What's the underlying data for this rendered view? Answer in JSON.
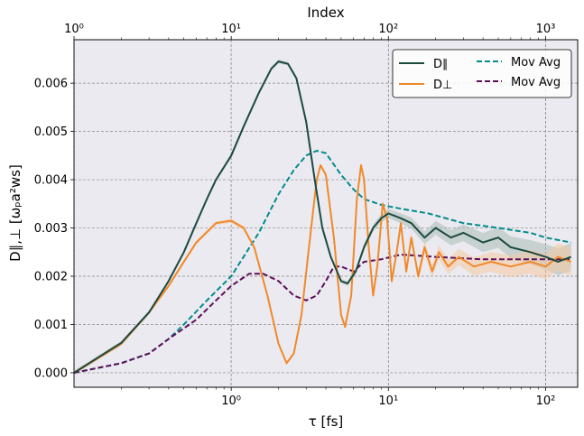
{
  "chart_data": {
    "type": "line",
    "xlabel": "τ [fs]",
    "ylabel": "D∥,⊥ [ωₚa²ws]",
    "top_xlabel": "Index",
    "xscale": "log",
    "xlim": [
      0.1,
      160
    ],
    "ylim": [
      -0.0003,
      0.0069
    ],
    "top_xlim": [
      1,
      1600
    ],
    "grid": true,
    "legend_position": "top-right",
    "x_ticks": [
      {
        "v": 1,
        "label": "10⁰"
      },
      {
        "v": 10,
        "label": "10¹"
      },
      {
        "v": 100,
        "label": "10²"
      }
    ],
    "top_ticks": [
      {
        "v": 1,
        "label": "10⁰"
      },
      {
        "v": 10,
        "label": "10¹"
      },
      {
        "v": 100,
        "label": "10²"
      },
      {
        "v": 1000,
        "label": "10³"
      }
    ],
    "y_ticks": [
      0.0,
      0.001,
      0.002,
      0.003,
      0.004,
      0.005,
      0.006
    ],
    "y_tick_labels": [
      "0.000",
      "0.001",
      "0.002",
      "0.003",
      "0.004",
      "0.005",
      "0.006"
    ],
    "series": [
      {
        "name": "D∥",
        "color": "#1b4a3e",
        "style": "solid",
        "points": [
          [
            0.1,
            0.0
          ],
          [
            0.2,
            0.00062
          ],
          [
            0.3,
            0.00125
          ],
          [
            0.4,
            0.0019
          ],
          [
            0.5,
            0.0025
          ],
          [
            0.6,
            0.0031
          ],
          [
            0.7,
            0.0036
          ],
          [
            0.8,
            0.004
          ],
          [
            1.0,
            0.0045
          ],
          [
            1.2,
            0.0051
          ],
          [
            1.5,
            0.0058
          ],
          [
            1.8,
            0.0063
          ],
          [
            2.0,
            0.00645
          ],
          [
            2.3,
            0.0064
          ],
          [
            2.6,
            0.0061
          ],
          [
            3.0,
            0.0052
          ],
          [
            3.4,
            0.004
          ],
          [
            3.8,
            0.003
          ],
          [
            4.3,
            0.0024
          ],
          [
            5.0,
            0.0019
          ],
          [
            5.5,
            0.00185
          ],
          [
            6.2,
            0.0021
          ],
          [
            7.0,
            0.0026
          ],
          [
            8.0,
            0.003
          ],
          [
            9.0,
            0.0032
          ],
          [
            10.0,
            0.0033
          ],
          [
            11.0,
            0.00325
          ],
          [
            12.0,
            0.0032
          ],
          [
            14.0,
            0.0031
          ],
          [
            17.0,
            0.0028
          ],
          [
            20.0,
            0.003
          ],
          [
            25.0,
            0.0028
          ],
          [
            30.0,
            0.0029
          ],
          [
            40.0,
            0.0027
          ],
          [
            50.0,
            0.0028
          ],
          [
            60.0,
            0.0026
          ],
          [
            80.0,
            0.0025
          ],
          [
            100.0,
            0.0024
          ],
          [
            120.0,
            0.0023
          ],
          [
            145.0,
            0.0024
          ]
        ]
      },
      {
        "name": "D⊥",
        "color": "#f0892a",
        "style": "solid",
        "points": [
          [
            0.1,
            0.0
          ],
          [
            0.2,
            0.0006
          ],
          [
            0.3,
            0.00125
          ],
          [
            0.4,
            0.0018
          ],
          [
            0.5,
            0.0023
          ],
          [
            0.6,
            0.0027
          ],
          [
            0.8,
            0.0031
          ],
          [
            1.0,
            0.00315
          ],
          [
            1.2,
            0.003
          ],
          [
            1.4,
            0.0026
          ],
          [
            1.7,
            0.0016
          ],
          [
            2.0,
            0.0006
          ],
          [
            2.25,
            0.0002
          ],
          [
            2.5,
            0.0004
          ],
          [
            2.8,
            0.0012
          ],
          [
            3.1,
            0.0025
          ],
          [
            3.5,
            0.004
          ],
          [
            3.7,
            0.0043
          ],
          [
            4.0,
            0.0041
          ],
          [
            4.5,
            0.0028
          ],
          [
            5.0,
            0.0012
          ],
          [
            5.3,
            0.00095
          ],
          [
            5.8,
            0.0016
          ],
          [
            6.3,
            0.0036
          ],
          [
            6.7,
            0.0043
          ],
          [
            7.0,
            0.004
          ],
          [
            7.5,
            0.0026
          ],
          [
            8.0,
            0.0016
          ],
          [
            8.5,
            0.0022
          ],
          [
            9.2,
            0.0035
          ],
          [
            9.8,
            0.0032
          ],
          [
            10.5,
            0.0019
          ],
          [
            11.3,
            0.0025
          ],
          [
            12.0,
            0.0031
          ],
          [
            13.0,
            0.0021
          ],
          [
            14.0,
            0.0028
          ],
          [
            15.5,
            0.002
          ],
          [
            17.0,
            0.0026
          ],
          [
            19.0,
            0.0021
          ],
          [
            21.0,
            0.0025
          ],
          [
            24.0,
            0.0022
          ],
          [
            28.0,
            0.0024
          ],
          [
            35.0,
            0.0022
          ],
          [
            45.0,
            0.0023
          ],
          [
            60.0,
            0.0022
          ],
          [
            80.0,
            0.0023
          ],
          [
            100.0,
            0.0022
          ],
          [
            120.0,
            0.0024
          ],
          [
            145.0,
            0.0023
          ]
        ]
      },
      {
        "name": "Mov Avg",
        "color": "#008b8b",
        "style": "dashed",
        "points": [
          [
            0.1,
            0.0
          ],
          [
            0.2,
            0.0002
          ],
          [
            0.3,
            0.0004
          ],
          [
            0.4,
            0.0007
          ],
          [
            0.5,
            0.001
          ],
          [
            0.7,
            0.0015
          ],
          [
            1.0,
            0.002
          ],
          [
            1.5,
            0.0029
          ],
          [
            2.0,
            0.0037
          ],
          [
            2.5,
            0.0042
          ],
          [
            3.0,
            0.0045
          ],
          [
            3.5,
            0.0046
          ],
          [
            4.0,
            0.00455
          ],
          [
            5.0,
            0.0041
          ],
          [
            6.0,
            0.0038
          ],
          [
            7.0,
            0.0036
          ],
          [
            9.0,
            0.00348
          ],
          [
            12.0,
            0.0034
          ],
          [
            18.0,
            0.0033
          ],
          [
            30.0,
            0.0031
          ],
          [
            50.0,
            0.003
          ],
          [
            80.0,
            0.0029
          ],
          [
            100.0,
            0.0028
          ],
          [
            145.0,
            0.0027
          ]
        ]
      },
      {
        "name": "Mov Avg",
        "color": "#5c0f5a",
        "style": "dashed",
        "points": [
          [
            0.1,
            0.0
          ],
          [
            0.2,
            0.0002
          ],
          [
            0.3,
            0.0004
          ],
          [
            0.4,
            0.0007
          ],
          [
            0.6,
            0.0011
          ],
          [
            0.8,
            0.0015
          ],
          [
            1.0,
            0.0018
          ],
          [
            1.3,
            0.00205
          ],
          [
            1.6,
            0.00205
          ],
          [
            2.0,
            0.0019
          ],
          [
            2.5,
            0.0016
          ],
          [
            3.0,
            0.0015
          ],
          [
            3.5,
            0.0016
          ],
          [
            4.0,
            0.0019
          ],
          [
            4.5,
            0.0022
          ],
          [
            5.0,
            0.0022
          ],
          [
            6.0,
            0.0021
          ],
          [
            7.0,
            0.0023
          ],
          [
            9.0,
            0.00235
          ],
          [
            12.0,
            0.00245
          ],
          [
            20.0,
            0.0024
          ],
          [
            40.0,
            0.00235
          ],
          [
            80.0,
            0.00235
          ],
          [
            145.0,
            0.00235
          ]
        ]
      }
    ]
  }
}
